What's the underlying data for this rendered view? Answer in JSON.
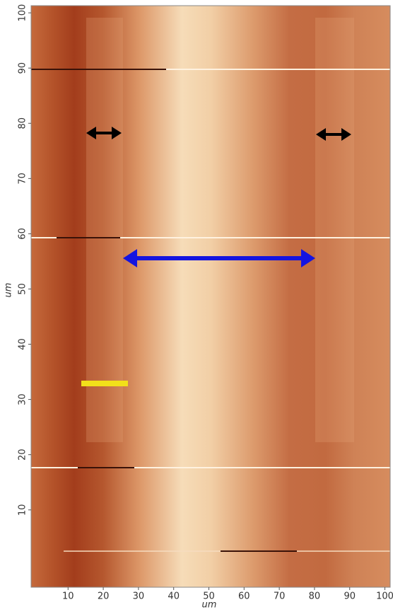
{
  "chart_data": {
    "type": "image",
    "xlabel": "um",
    "ylabel": "um",
    "xlim": [
      -0.5,
      101.5
    ],
    "ylim": [
      -4,
      101.3
    ],
    "xticks": [
      10,
      20,
      30,
      40,
      50,
      60,
      70,
      80,
      90,
      100
    ],
    "yticks": [
      10,
      20,
      30,
      40,
      50,
      60,
      70,
      80,
      90,
      100
    ]
  }
}
